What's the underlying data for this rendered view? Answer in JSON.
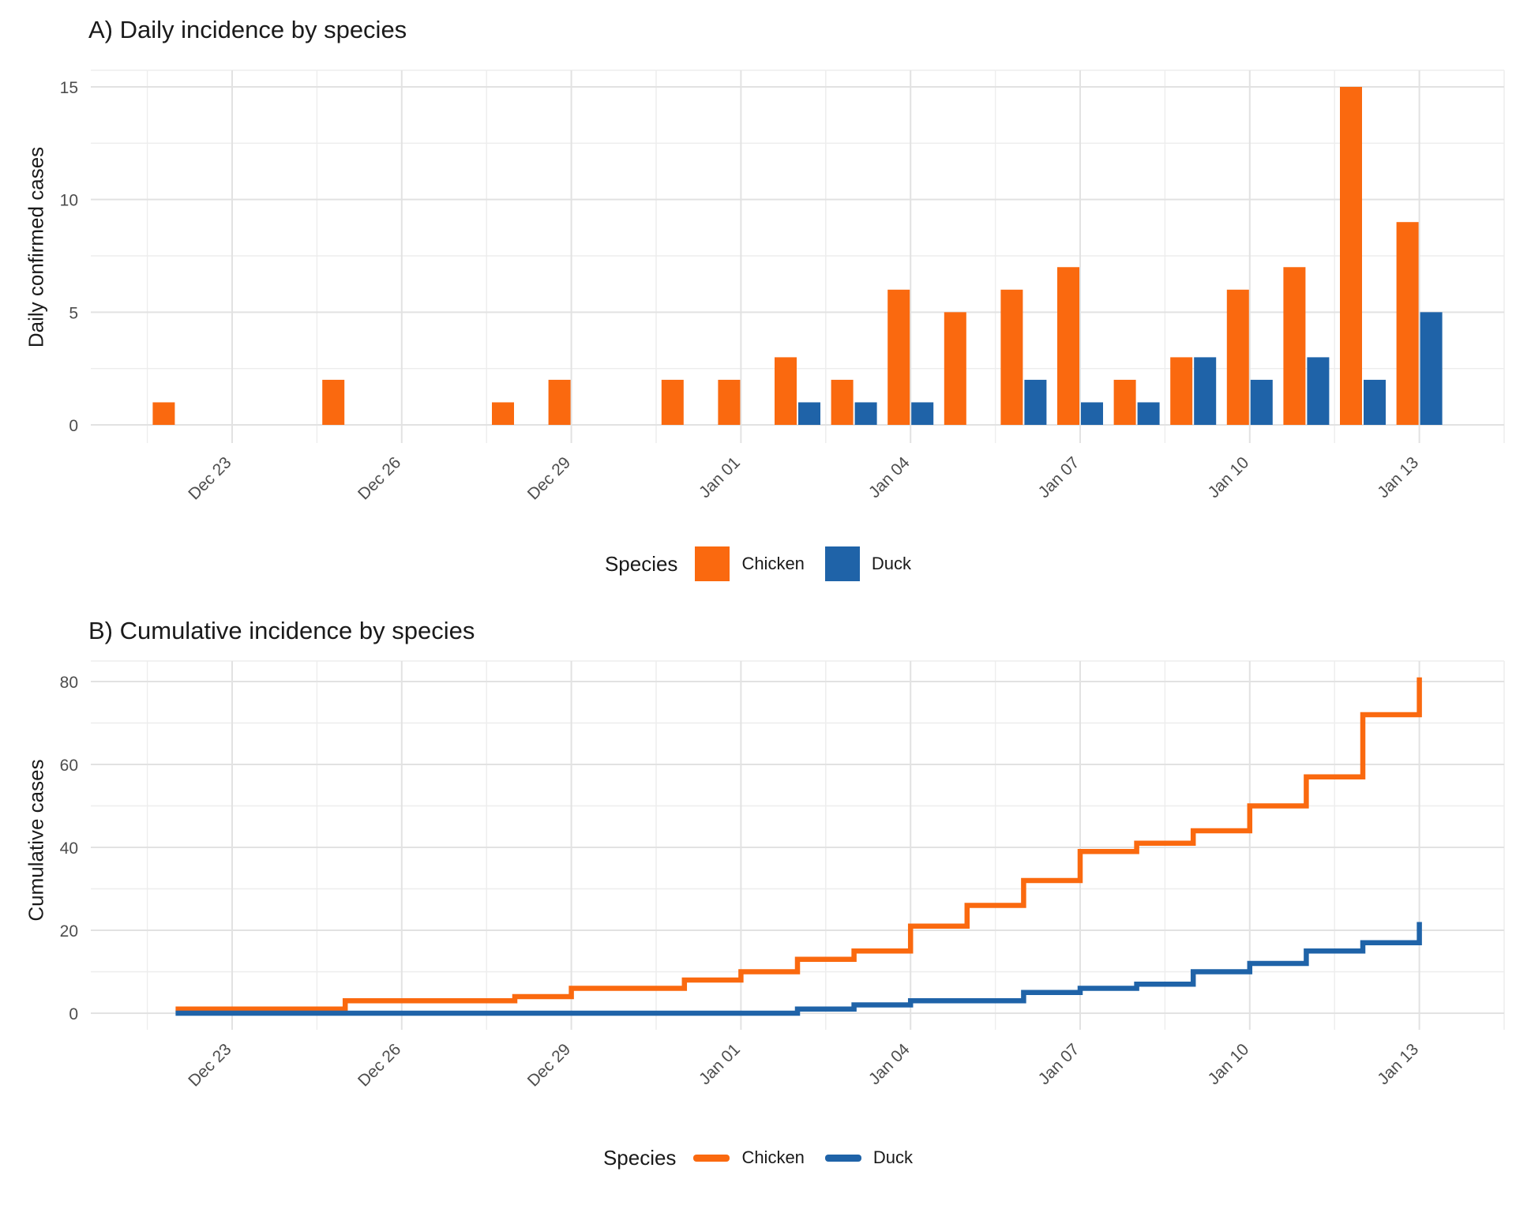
{
  "colors": {
    "chicken": "#FA690F",
    "duck": "#1F63A8",
    "grid_major": "#E2E2E2",
    "grid_minor": "#EDEDED",
    "axis_text": "#4D4D4D",
    "title_text": "#1A1A1A",
    "background": "#FFFFFF"
  },
  "chart_data": [
    {
      "type": "bar",
      "panel": "A",
      "title": "A) Daily incidence by species",
      "ylabel": "Daily confirmed cases",
      "xlabel": "",
      "legend_title": "Species",
      "legend_position": "bottom",
      "grid": true,
      "ylim": [
        0,
        15
      ],
      "y_ticks": [
        0,
        5,
        10,
        15
      ],
      "categories": [
        "Dec 22",
        "Dec 23",
        "Dec 24",
        "Dec 25",
        "Dec 26",
        "Dec 27",
        "Dec 28",
        "Dec 29",
        "Dec 30",
        "Dec 31",
        "Jan 01",
        "Jan 02",
        "Jan 03",
        "Jan 04",
        "Jan 05",
        "Jan 06",
        "Jan 07",
        "Jan 08",
        "Jan 09",
        "Jan 10",
        "Jan 11",
        "Jan 12",
        "Jan 13"
      ],
      "x_tick_labels": [
        "Dec 23",
        "Dec 26",
        "Dec 29",
        "Jan 01",
        "Jan 04",
        "Jan 07",
        "Jan 10",
        "Jan 13"
      ],
      "x_tick_days": [
        1,
        4,
        7,
        10,
        13,
        16,
        19,
        22
      ],
      "series": [
        {
          "name": "Chicken",
          "color": "#FA690F",
          "values": [
            1,
            0,
            0,
            2,
            0,
            0,
            1,
            2,
            0,
            2,
            2,
            3,
            2,
            6,
            5,
            6,
            7,
            2,
            3,
            6,
            7,
            15,
            9
          ]
        },
        {
          "name": "Duck",
          "color": "#1F63A8",
          "values": [
            0,
            0,
            0,
            0,
            0,
            0,
            0,
            0,
            0,
            0,
            0,
            1,
            1,
            1,
            0,
            2,
            1,
            1,
            3,
            2,
            3,
            2,
            5
          ]
        }
      ]
    },
    {
      "type": "line",
      "step": true,
      "panel": "B",
      "title": "B) Cumulative incidence by species",
      "ylabel": "Cumulative cases",
      "xlabel": "",
      "legend_title": "Species",
      "legend_position": "bottom",
      "grid": true,
      "ylim": [
        0,
        80
      ],
      "y_ticks": [
        0,
        20,
        40,
        60,
        80
      ],
      "categories": [
        "Dec 22",
        "Dec 23",
        "Dec 24",
        "Dec 25",
        "Dec 26",
        "Dec 27",
        "Dec 28",
        "Dec 29",
        "Dec 30",
        "Dec 31",
        "Jan 01",
        "Jan 02",
        "Jan 03",
        "Jan 04",
        "Jan 05",
        "Jan 06",
        "Jan 07",
        "Jan 08",
        "Jan 09",
        "Jan 10",
        "Jan 11",
        "Jan 12",
        "Jan 13"
      ],
      "x_tick_labels": [
        "Dec 23",
        "Dec 26",
        "Dec 29",
        "Jan 01",
        "Jan 04",
        "Jan 07",
        "Jan 10",
        "Jan 13"
      ],
      "x_tick_days": [
        1,
        4,
        7,
        10,
        13,
        16,
        19,
        22
      ],
      "series": [
        {
          "name": "Chicken",
          "color": "#FA690F",
          "values": [
            1,
            1,
            1,
            3,
            3,
            3,
            4,
            6,
            6,
            8,
            10,
            13,
            15,
            21,
            26,
            32,
            39,
            41,
            44,
            50,
            57,
            72,
            81
          ]
        },
        {
          "name": "Duck",
          "color": "#1F63A8",
          "values": [
            0,
            0,
            0,
            0,
            0,
            0,
            0,
            0,
            0,
            0,
            0,
            1,
            2,
            3,
            3,
            5,
            6,
            7,
            10,
            12,
            15,
            17,
            22
          ]
        }
      ]
    }
  ]
}
